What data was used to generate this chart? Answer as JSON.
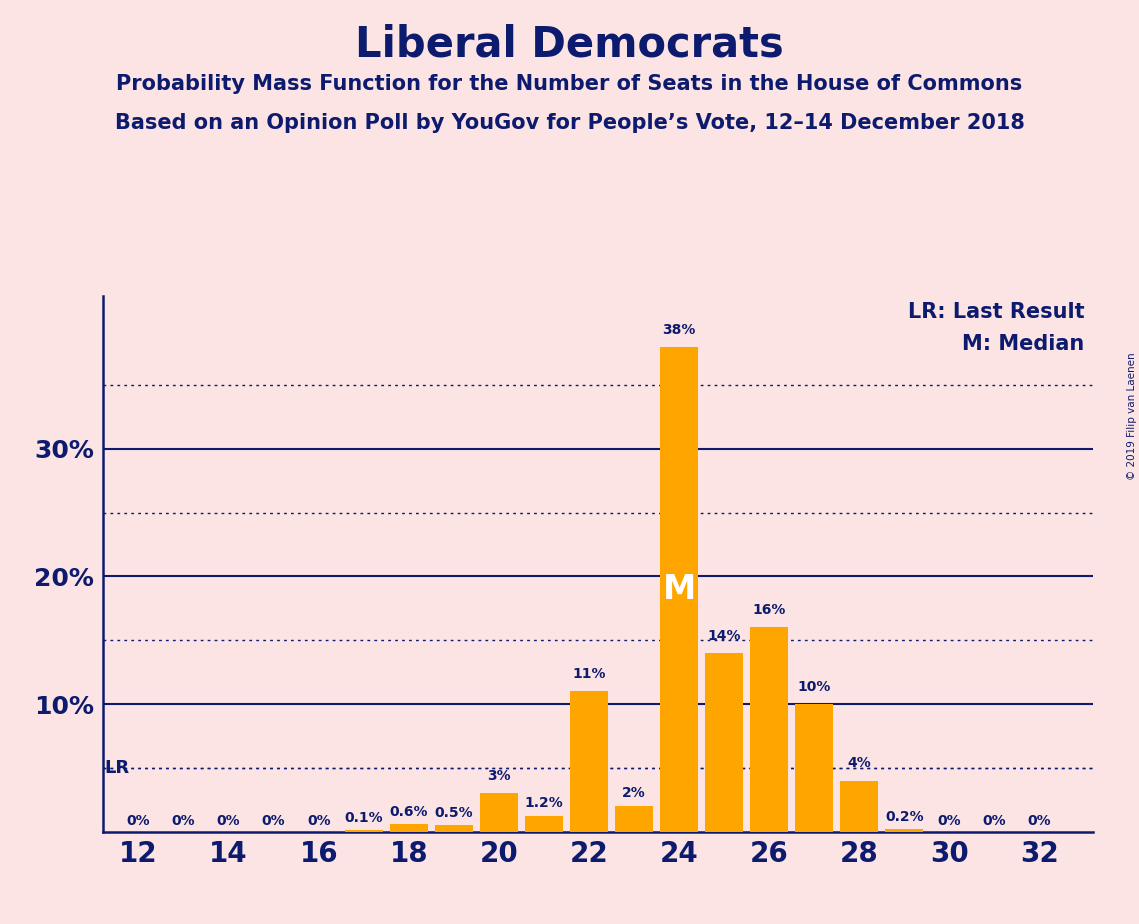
{
  "title": "Liberal Democrats",
  "subtitle1": "Probability Mass Function for the Number of Seats in the House of Commons",
  "subtitle2": "Based on an Opinion Poll by YouGov for People’s Vote, 12–14 December 2018",
  "copyright": "© 2019 Filip van Laenen",
  "legend_lr": "LR: Last Result",
  "legend_m": "M: Median",
  "background_color": "#fce4e4",
  "bar_color": "#FFA500",
  "text_color": "#0d1b6e",
  "seats": [
    12,
    13,
    14,
    15,
    16,
    17,
    18,
    19,
    20,
    21,
    22,
    23,
    24,
    25,
    26,
    27,
    28,
    29,
    30,
    31,
    32
  ],
  "probabilities": [
    0.0,
    0.0,
    0.0,
    0.0,
    0.0,
    0.1,
    0.6,
    0.5,
    3.0,
    1.2,
    11.0,
    2.0,
    38.0,
    14.0,
    16.0,
    10.0,
    4.0,
    0.2,
    0.0,
    0.0,
    0.0
  ],
  "labels": [
    "0%",
    "0%",
    "0%",
    "0%",
    "0%",
    "0.1%",
    "0.6%",
    "0.5%",
    "3%",
    "1.2%",
    "11%",
    "2%",
    "38%",
    "14%",
    "16%",
    "10%",
    "4%",
    "0.2%",
    "0%",
    "0%",
    "0%"
  ],
  "median_seat": 24,
  "lr_value": 5.0,
  "ylim_max": 42,
  "solid_lines": [
    10,
    20,
    30
  ],
  "dotted_lines": [
    5,
    15,
    25,
    35
  ]
}
